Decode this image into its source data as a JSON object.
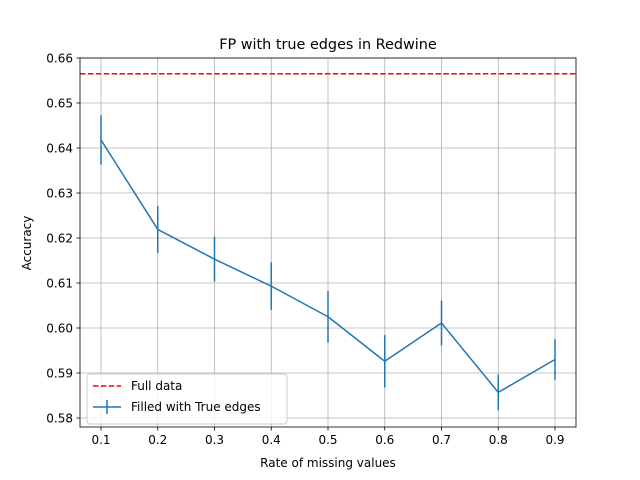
{
  "chart_data": {
    "type": "line",
    "title": "FP with true edges in Redwine",
    "xlabel": "Rate of missing values",
    "ylabel": "Accuracy",
    "xlim": [
      0.063,
      0.937
    ],
    "ylim": [
      0.578,
      0.66
    ],
    "x_ticks": [
      "0.1",
      "0.2",
      "0.3",
      "0.4",
      "0.5",
      "0.6",
      "0.7",
      "0.8",
      "0.9"
    ],
    "x_tick_values": [
      0.1,
      0.2,
      0.3,
      0.4,
      0.5,
      0.6,
      0.7,
      0.8,
      0.9
    ],
    "y_ticks": [
      "0.58",
      "0.59",
      "0.60",
      "0.61",
      "0.62",
      "0.63",
      "0.64",
      "0.65",
      "0.66"
    ],
    "y_tick_values": [
      0.58,
      0.59,
      0.6,
      0.61,
      0.62,
      0.63,
      0.64,
      0.65,
      0.66
    ],
    "grid": true,
    "legend_position": "lower-left",
    "reference_line": {
      "name": "Full data",
      "y": 0.6565,
      "color": "#ff0000",
      "style": "dashed"
    },
    "series": [
      {
        "name": "Filled with True edges",
        "color": "#1f77b4",
        "x": [
          0.1,
          0.2,
          0.3,
          0.4,
          0.5,
          0.6,
          0.7,
          0.8,
          0.9
        ],
        "y": [
          0.6418,
          0.6219,
          0.6153,
          0.6093,
          0.6025,
          0.5926,
          0.6011,
          0.5857,
          0.593
        ],
        "yerr": [
          0.0055,
          0.0052,
          0.005,
          0.0053,
          0.0057,
          0.0058,
          0.005,
          0.004,
          0.0045
        ]
      }
    ]
  }
}
